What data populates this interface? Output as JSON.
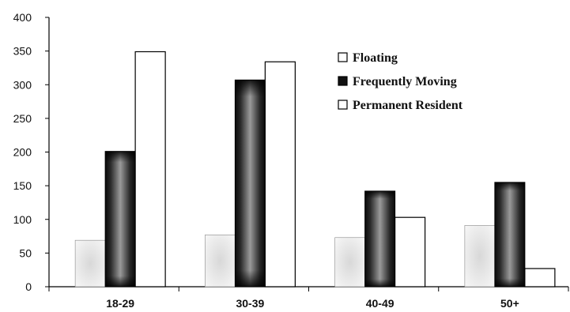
{
  "chart_data": {
    "type": "bar",
    "categories": [
      "18-29",
      "30-39",
      "40-49",
      "50+"
    ],
    "series": [
      {
        "name": "Floating",
        "values": [
          69,
          77,
          73,
          91
        ]
      },
      {
        "name": "Frequently Moving",
        "values": [
          201,
          307,
          142,
          155
        ]
      },
      {
        "name": "Permanent Resident",
        "values": [
          349,
          334,
          103,
          27
        ]
      }
    ],
    "ylim": [
      0,
      400
    ],
    "yticks": [
      0,
      50,
      100,
      150,
      200,
      250,
      300,
      350,
      400
    ],
    "grid": false,
    "legend_position": "top-right",
    "title": "",
    "xlabel": "",
    "ylabel": ""
  }
}
